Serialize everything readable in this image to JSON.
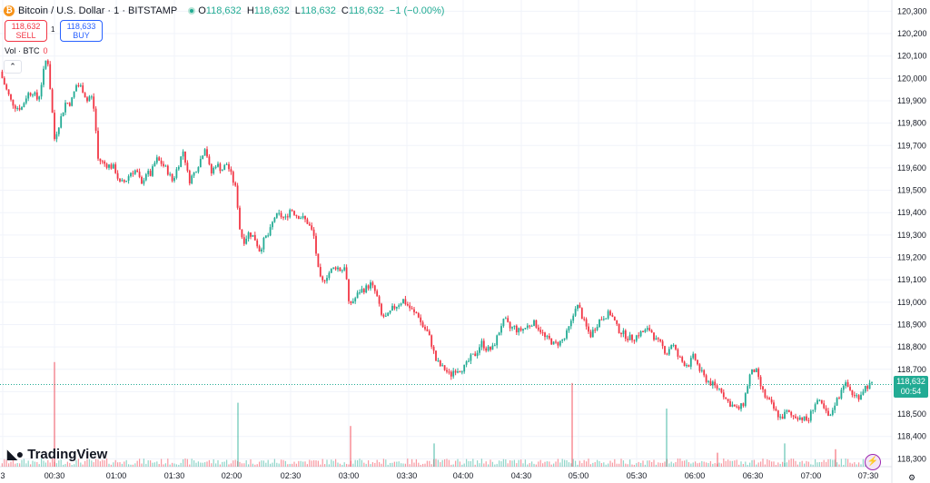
{
  "header": {
    "coin_symbol": "₿",
    "symbol": "Bitcoin / U.S. Dollar · 1 · BITSTAMP",
    "ohlc": {
      "o_label": "O",
      "o_value": "118,632",
      "h_label": "H",
      "h_value": "118,632",
      "l_label": "L",
      "l_value": "118,632",
      "c_label": "C",
      "c_value": "118,632",
      "change": "−1 (−0.00%)"
    }
  },
  "trade": {
    "sell_price": "118,632",
    "sell_label": "SELL",
    "spread": "1",
    "buy_price": "118,633",
    "buy_label": "BUY"
  },
  "volume_legend": {
    "label": "Vol · BTC",
    "value": "0"
  },
  "collapse_icon": "chevron-up-icon",
  "logo_text": "TradingView",
  "price_tag": {
    "price": "118,632",
    "countdown": "00:54"
  },
  "colors": {
    "up": "#22ab94",
    "down": "#f23645",
    "grid": "#f0f3fa",
    "axis_text": "#131722"
  },
  "chart_data": {
    "type": "candlestick",
    "title": "Bitcoin / U.S. Dollar · 1 · BITSTAMP",
    "y_ticks": [
      118300,
      118400,
      118500,
      118600,
      118700,
      118800,
      118900,
      119000,
      119100,
      119200,
      119300,
      119400,
      119500,
      119600,
      119700,
      119800,
      119900,
      120000,
      120100,
      120200,
      120300
    ],
    "y_tick_labels": [
      "118,300",
      "118,400",
      "118,500",
      "118,600",
      "118,700",
      "118,800",
      "118,900",
      "119,000",
      "119,100",
      "119,200",
      "119,300",
      "119,400",
      "119,500",
      "119,600",
      "119,700",
      "119,800",
      "119,900",
      "120,000",
      "120,100",
      "120,200",
      "120,300"
    ],
    "ylim": [
      118265,
      120330
    ],
    "x_ticks": [
      "3",
      "00:30",
      "01:00",
      "01:30",
      "02:00",
      "02:30",
      "03:00",
      "03:30",
      "04:00",
      "04:30",
      "05:00",
      "05:30",
      "06:00",
      "06:30",
      "07:00",
      "07:30"
    ],
    "x_range_minutes": [
      0,
      497
    ],
    "current_price": 118632,
    "close_path": [
      [
        0,
        120030
      ],
      [
        6,
        119960
      ],
      [
        12,
        119900
      ],
      [
        18,
        119870
      ],
      [
        24,
        119870
      ],
      [
        30,
        119930
      ],
      [
        36,
        119940
      ],
      [
        42,
        119900
      ],
      [
        48,
        120030
      ],
      [
        52,
        120110
      ],
      [
        56,
        119920
      ],
      [
        60,
        119730
      ],
      [
        66,
        119810
      ],
      [
        72,
        119890
      ],
      [
        78,
        119890
      ],
      [
        84,
        119970
      ],
      [
        90,
        119960
      ],
      [
        96,
        119900
      ],
      [
        100,
        119930
      ],
      [
        104,
        119850
      ],
      [
        108,
        119640
      ],
      [
        114,
        119620
      ],
      [
        120,
        119610
      ],
      [
        126,
        119600
      ],
      [
        132,
        119530
      ],
      [
        138,
        119540
      ],
      [
        144,
        119580
      ],
      [
        150,
        119590
      ],
      [
        156,
        119520
      ],
      [
        160,
        119580
      ],
      [
        166,
        119570
      ],
      [
        172,
        119640
      ],
      [
        178,
        119620
      ],
      [
        184,
        119590
      ],
      [
        190,
        119540
      ],
      [
        196,
        119610
      ],
      [
        202,
        119680
      ],
      [
        208,
        119540
      ],
      [
        214,
        119580
      ],
      [
        220,
        119630
      ],
      [
        226,
        119700
      ],
      [
        232,
        119570
      ],
      [
        238,
        119620
      ],
      [
        244,
        119590
      ],
      [
        250,
        119620
      ],
      [
        256,
        119550
      ],
      [
        260,
        119500
      ],
      [
        264,
        119330
      ],
      [
        268,
        119270
      ],
      [
        274,
        119310
      ],
      [
        280,
        119290
      ],
      [
        286,
        119230
      ],
      [
        292,
        119290
      ],
      [
        296,
        119300
      ],
      [
        302,
        119380
      ],
      [
        308,
        119390
      ],
      [
        314,
        119370
      ],
      [
        320,
        119420
      ],
      [
        326,
        119390
      ],
      [
        332,
        119380
      ],
      [
        338,
        119360
      ],
      [
        342,
        119330
      ],
      [
        346,
        119290
      ],
      [
        350,
        119150
      ],
      [
        354,
        119080
      ],
      [
        358,
        119110
      ],
      [
        364,
        119140
      ],
      [
        370,
        119160
      ],
      [
        376,
        119140
      ],
      [
        380,
        119170
      ],
      [
        384,
        118990
      ],
      [
        390,
        119010
      ],
      [
        396,
        119050
      ],
      [
        402,
        119060
      ],
      [
        408,
        119080
      ],
      [
        414,
        119040
      ],
      [
        420,
        118940
      ],
      [
        426,
        118930
      ],
      [
        432,
        118970
      ],
      [
        438,
        118990
      ],
      [
        444,
        119010
      ],
      [
        450,
        118980
      ],
      [
        456,
        118950
      ],
      [
        460,
        118950
      ],
      [
        464,
        118900
      ],
      [
        470,
        118870
      ],
      [
        474,
        118830
      ],
      [
        480,
        118740
      ],
      [
        486,
        118710
      ],
      [
        490,
        118700
      ],
      [
        496,
        118670
      ],
      [
        500,
        118700
      ],
      [
        506,
        118700
      ],
      [
        512,
        118710
      ],
      [
        518,
        118750
      ],
      [
        524,
        118770
      ],
      [
        530,
        118820
      ],
      [
        536,
        118790
      ],
      [
        542,
        118790
      ],
      [
        548,
        118850
      ],
      [
        552,
        118900
      ],
      [
        556,
        118920
      ],
      [
        562,
        118880
      ],
      [
        566,
        118890
      ],
      [
        570,
        118870
      ],
      [
        576,
        118880
      ],
      [
        580,
        118890
      ],
      [
        586,
        118910
      ],
      [
        590,
        118900
      ],
      [
        596,
        118870
      ],
      [
        600,
        118840
      ],
      [
        606,
        118830
      ],
      [
        610,
        118810
      ],
      [
        616,
        118820
      ],
      [
        622,
        118840
      ],
      [
        626,
        118880
      ],
      [
        630,
        118920
      ],
      [
        634,
        118990
      ],
      [
        638,
        118970
      ],
      [
        644,
        118900
      ],
      [
        650,
        118850
      ],
      [
        654,
        118880
      ],
      [
        660,
        118920
      ],
      [
        666,
        118940
      ],
      [
        672,
        118950
      ],
      [
        676,
        118920
      ],
      [
        680,
        118880
      ],
      [
        686,
        118860
      ],
      [
        692,
        118840
      ],
      [
        698,
        118840
      ],
      [
        704,
        118860
      ],
      [
        710,
        118870
      ],
      [
        716,
        118880
      ],
      [
        722,
        118830
      ],
      [
        728,
        118810
      ],
      [
        734,
        118770
      ],
      [
        740,
        118820
      ],
      [
        746,
        118760
      ],
      [
        752,
        118730
      ],
      [
        758,
        118720
      ],
      [
        764,
        118760
      ],
      [
        770,
        118700
      ],
      [
        776,
        118660
      ],
      [
        782,
        118640
      ],
      [
        788,
        118620
      ],
      [
        794,
        118610
      ],
      [
        800,
        118560
      ],
      [
        806,
        118540
      ],
      [
        812,
        118520
      ],
      [
        818,
        118540
      ],
      [
        822,
        118610
      ],
      [
        826,
        118680
      ],
      [
        832,
        118700
      ],
      [
        836,
        118640
      ],
      [
        842,
        118580
      ],
      [
        848,
        118550
      ],
      [
        854,
        118510
      ],
      [
        860,
        118480
      ],
      [
        866,
        118510
      ],
      [
        872,
        118490
      ],
      [
        878,
        118490
      ],
      [
        884,
        118480
      ],
      [
        890,
        118470
      ],
      [
        896,
        118540
      ],
      [
        900,
        118560
      ],
      [
        906,
        118530
      ],
      [
        910,
        118500
      ],
      [
        914,
        118480
      ],
      [
        918,
        118540
      ],
      [
        924,
        118580
      ],
      [
        928,
        118640
      ],
      [
        934,
        118620
      ],
      [
        940,
        118580
      ],
      [
        946,
        118580
      ],
      [
        952,
        118620
      ],
      [
        958,
        118630
      ],
      [
        962,
        118632
      ]
    ],
    "volume_spikes": [
      [
        60,
        0.9
      ],
      [
        262,
        0.55
      ],
      [
        386,
        0.35
      ],
      [
        478,
        0.2
      ],
      [
        630,
        0.72
      ],
      [
        734,
        0.5
      ],
      [
        790,
        0.12
      ],
      [
        864,
        0.2
      ],
      [
        920,
        0.15
      ]
    ]
  }
}
